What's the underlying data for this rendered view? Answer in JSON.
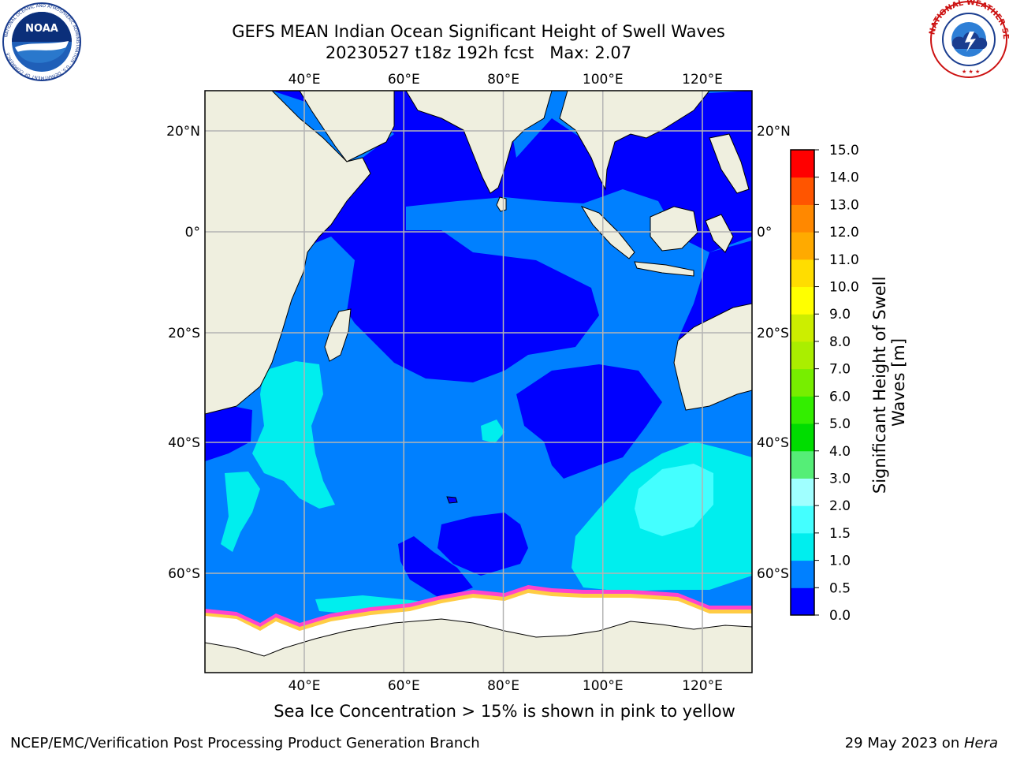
{
  "title": {
    "line1": "GEFS MEAN Indian Ocean Significant Height of Swell Waves",
    "line2": "20230527 t18z 192h fcst   Max: 2.07"
  },
  "map": {
    "lon_ticks_top": [
      "40°E",
      "60°E",
      "80°E",
      "100°E",
      "120°E"
    ],
    "lon_ticks_bottom": [
      "40°E",
      "60°E",
      "80°E",
      "100°E",
      "120°E"
    ],
    "lat_ticks_left": [
      "20°N",
      "0°",
      "20°S",
      "40°S",
      "60°S"
    ],
    "lat_ticks_right": [
      "20°N",
      "0°",
      "20°S",
      "40°S",
      "60°S"
    ],
    "lon_values": [
      40,
      60,
      80,
      100,
      120
    ],
    "lat_values": [
      20,
      0,
      -20,
      -40,
      -60
    ],
    "colors": {
      "land": "#efefdf",
      "gridline": "#b4b4b4",
      "sea_ice": "#ffffff",
      "ice_edge_pink": "#ff44cc",
      "ice_edge_yellow": "#ffcc44"
    }
  },
  "colorbar": {
    "title_line1": "Significant Height of Swell",
    "title_line2": "Waves [m]",
    "tick_labels": [
      "0.0",
      "0.5",
      "1.0",
      "1.5",
      "2.0",
      "3.0",
      "4.0",
      "5.0",
      "6.0",
      "7.0",
      "8.0",
      "9.0",
      "10.0",
      "11.0",
      "12.0",
      "13.0",
      "14.0",
      "15.0"
    ],
    "level_colors": [
      "#0000ff",
      "#0080ff",
      "#00eeee",
      "#44ffff",
      "#a0ffff",
      "#55ee77",
      "#00dd00",
      "#33ee00",
      "#77ee00",
      "#aaee00",
      "#ccee00",
      "#ffff00",
      "#ffdd00",
      "#ffaa00",
      "#ff8800",
      "#ff5500",
      "#ff0000"
    ]
  },
  "ice_note": "Sea Ice Concentration > 15% is shown in pink to yellow",
  "footer": {
    "left": "NCEP/EMC/Verification Post Processing Product Generation Branch",
    "right_prefix": "29 May 2023 on ",
    "right_italic": "Hera"
  },
  "logos": {
    "noaa_text": "NOAA",
    "noaa_ring_text": "NATIONAL OCEANIC AND ATMOSPHERIC ADMINISTRATION · U.S. DEPARTMENT OF COMMERCE",
    "nws_ring_text": "NATIONAL WEATHER SERVICE"
  }
}
